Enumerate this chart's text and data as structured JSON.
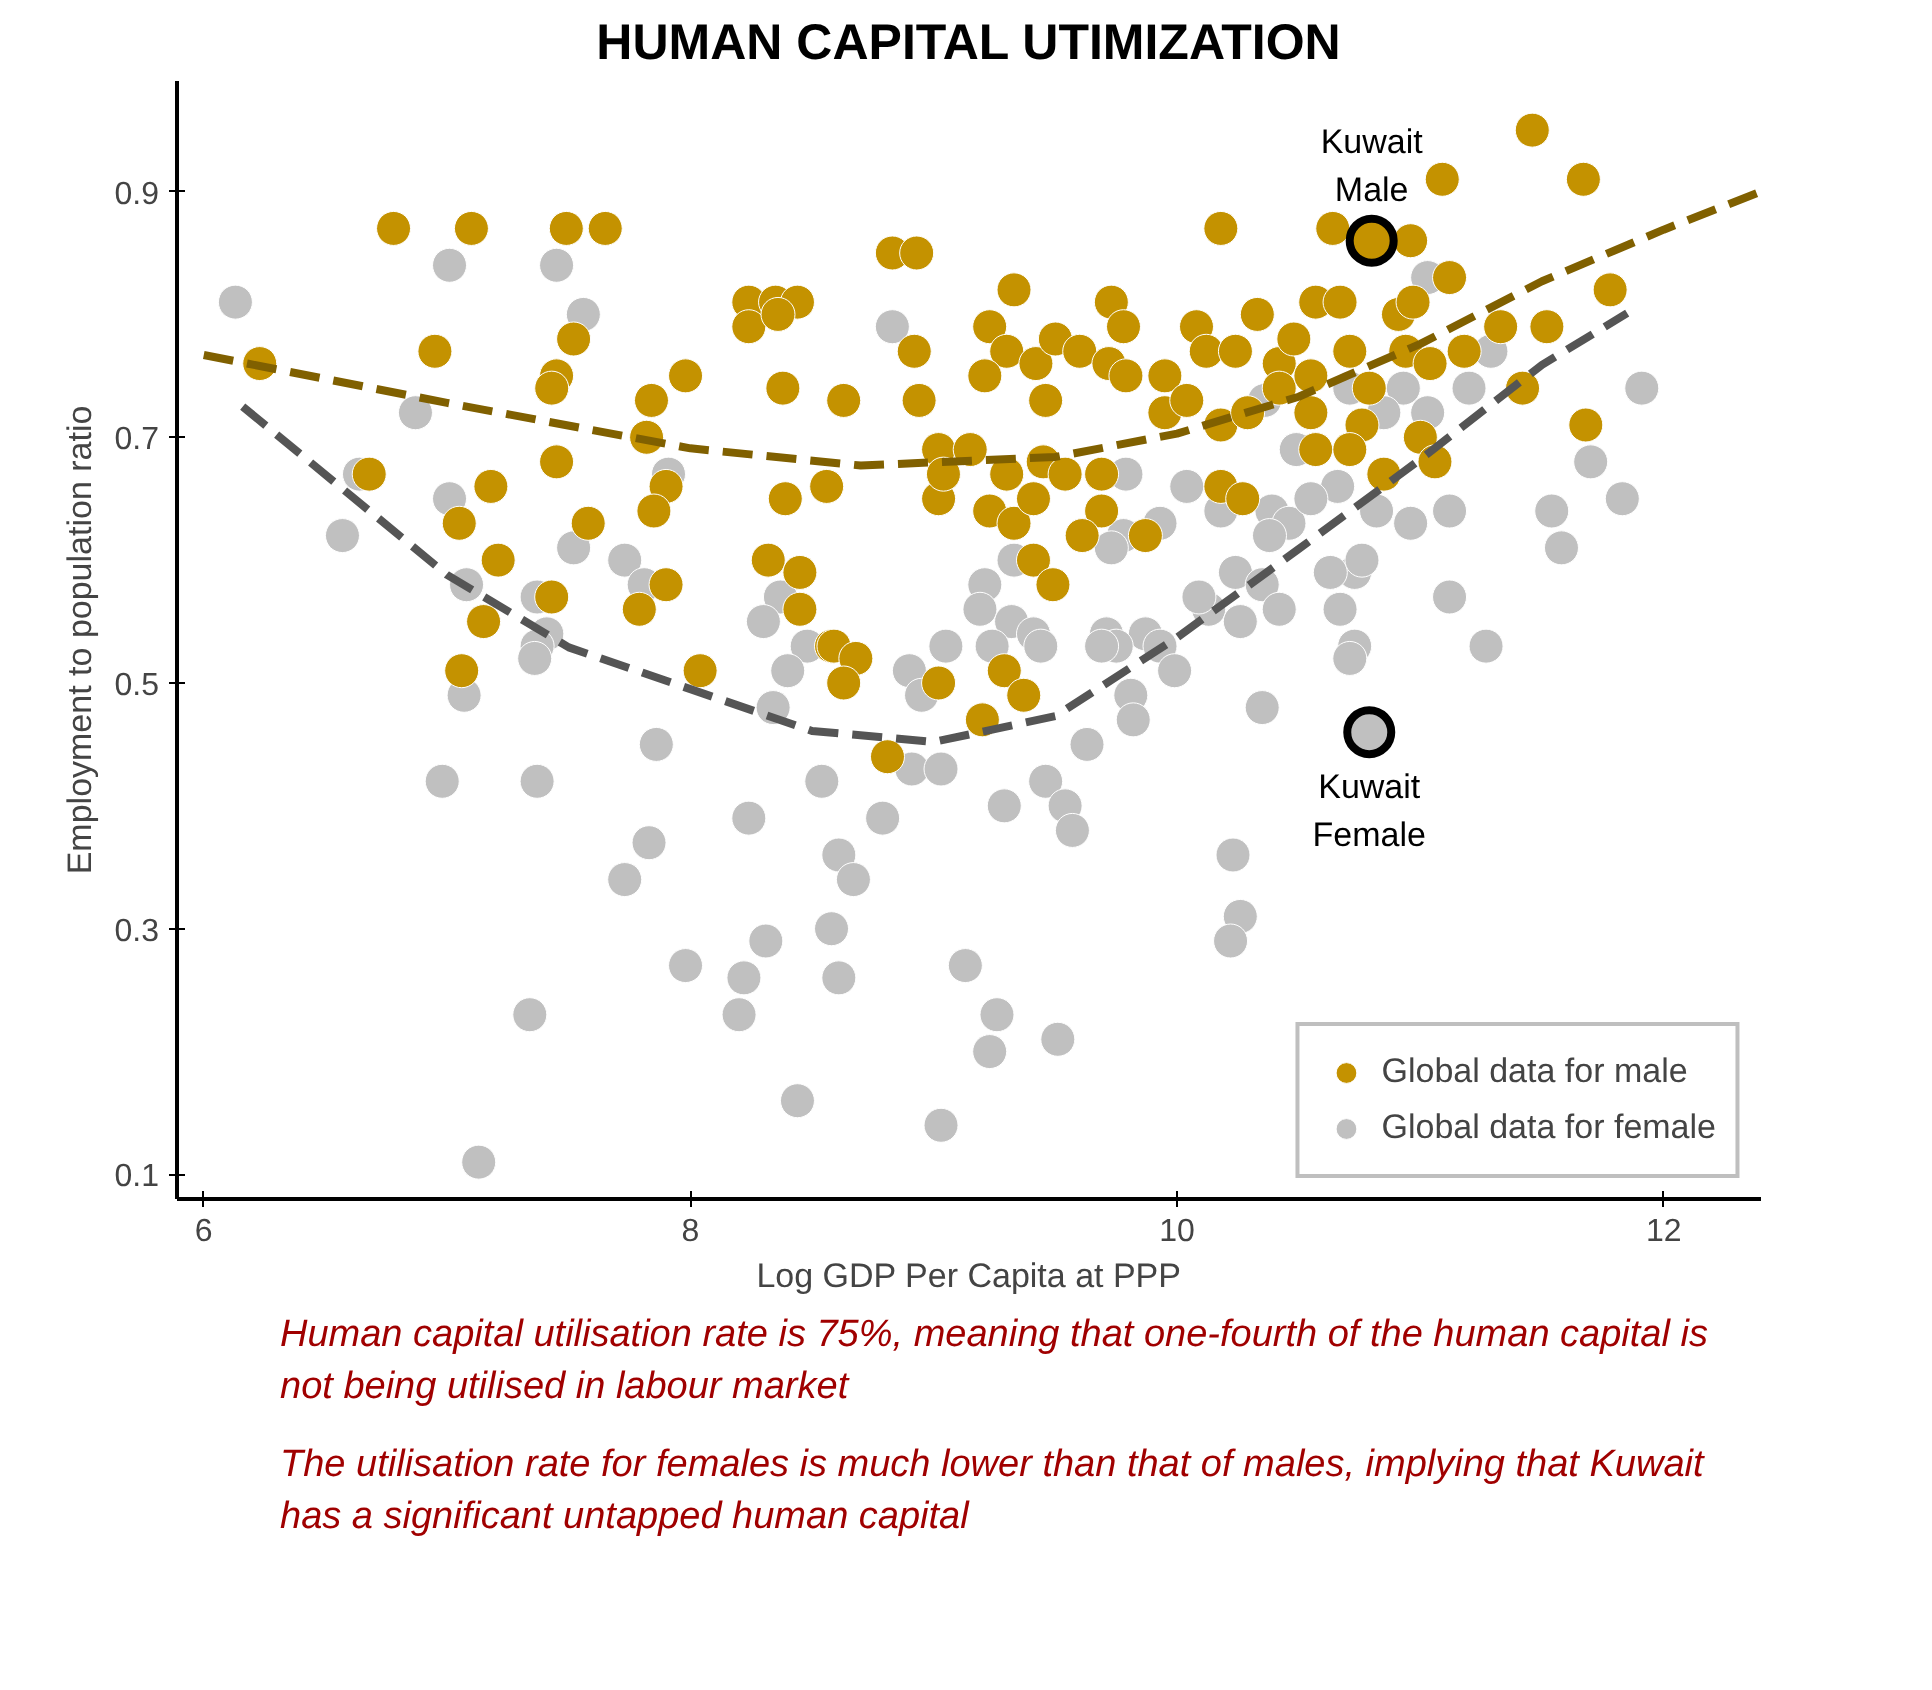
{
  "chart_data": {
    "type": "scatter",
    "title": "HUMAN CAPITAL UTIMIZATION",
    "xlabel": "Log GDP Per Capita at PPP",
    "ylabel": "Employment to population ratio",
    "xlim": [
      5.89,
      12.4
    ],
    "ylim": [
      0.08,
      0.99
    ],
    "xticks": [
      6,
      8,
      10,
      12
    ],
    "yticks": [
      0.1,
      0.3,
      0.5,
      0.7,
      0.9
    ],
    "grid": false,
    "legend": "bottom right",
    "series": [
      {
        "name": "Global data for female",
        "marker": "circle",
        "color": "#c0c0c0",
        "x": [
          6.13,
          7.01,
          7.45,
          7.56,
          6.87,
          8.83,
          6.64,
          7.01,
          6.57,
          7.52,
          7.73,
          7.81,
          7.91,
          7.08,
          7.37,
          7.41,
          7.37,
          8.37,
          8.3,
          8.48,
          7.07,
          7.36,
          6.98,
          7.37,
          7.86,
          7.83,
          7.73,
          8.24,
          8.34,
          8.4,
          8.54,
          8.79,
          8.61,
          8.67,
          8.58,
          8.31,
          7.98,
          8.22,
          8.2,
          8.61,
          7.34,
          8.44,
          7.13,
          8.9,
          8.95,
          8.91,
          9.03,
          9.03,
          11.91,
          11.03,
          11.29,
          11.2,
          11.7,
          11.54,
          11.83,
          11.58,
          11.12,
          11.12,
          11.27,
          10.96,
          10.82,
          10.73,
          10.63,
          10.93,
          10.85,
          11.03,
          10.71,
          10.49,
          10.66,
          10.36,
          10.39,
          10.46,
          10.18,
          10.38,
          10.24,
          10.35,
          10.13,
          10.42,
          10.09,
          10.26,
          9.93,
          9.78,
          9.73,
          10.04,
          10.55,
          10.67,
          10.76,
          9.33,
          9.21,
          9.19,
          9.32,
          9.41,
          9.71,
          9.87,
          9.75,
          9.93,
          10.73,
          9.05,
          9.24,
          9.79,
          10.71,
          10.35,
          9.99,
          9.81,
          9.82,
          9.63,
          9.46,
          9.54,
          9.57,
          9.29,
          10.23,
          10.26,
          10.22,
          9.13,
          9.26,
          9.23,
          9.51,
          9.44,
          9.69
        ],
        "values": [
          0.81,
          0.84,
          0.84,
          0.8,
          0.72,
          0.79,
          0.67,
          0.65,
          0.62,
          0.61,
          0.6,
          0.58,
          0.67,
          0.58,
          0.57,
          0.54,
          0.53,
          0.57,
          0.55,
          0.53,
          0.49,
          0.52,
          0.42,
          0.42,
          0.45,
          0.37,
          0.34,
          0.39,
          0.48,
          0.51,
          0.42,
          0.39,
          0.36,
          0.34,
          0.3,
          0.29,
          0.27,
          0.26,
          0.23,
          0.26,
          0.23,
          0.16,
          0.11,
          0.51,
          0.49,
          0.43,
          0.43,
          0.14,
          0.74,
          0.83,
          0.77,
          0.74,
          0.68,
          0.64,
          0.65,
          0.61,
          0.64,
          0.57,
          0.53,
          0.63,
          0.64,
          0.59,
          0.59,
          0.74,
          0.72,
          0.72,
          0.74,
          0.69,
          0.66,
          0.73,
          0.64,
          0.63,
          0.64,
          0.62,
          0.59,
          0.58,
          0.56,
          0.56,
          0.57,
          0.55,
          0.63,
          0.62,
          0.61,
          0.66,
          0.65,
          0.56,
          0.6,
          0.6,
          0.58,
          0.56,
          0.55,
          0.54,
          0.54,
          0.54,
          0.53,
          0.53,
          0.53,
          0.53,
          0.53,
          0.67,
          0.52,
          0.48,
          0.51,
          0.49,
          0.47,
          0.45,
          0.42,
          0.4,
          0.38,
          0.4,
          0.36,
          0.31,
          0.29,
          0.27,
          0.23,
          0.2,
          0.21,
          0.53,
          0.53
        ]
      },
      {
        "name": "Global data for male",
        "marker": "circle",
        "color": "#c49200",
        "x": [
          6.78,
          7.1,
          7.49,
          7.65,
          6.23,
          6.95,
          7.52,
          7.45,
          7.43,
          7.98,
          7.84,
          7.82,
          7.45,
          6.68,
          7.18,
          7.05,
          7.21,
          7.15,
          7.43,
          7.58,
          7.9,
          7.85,
          7.9,
          7.79,
          8.24,
          8.35,
          8.44,
          8.24,
          8.36,
          8.38,
          8.63,
          8.39,
          8.56,
          8.32,
          8.45,
          8.45,
          8.58,
          8.83,
          8.93,
          8.92,
          8.94,
          9.02,
          9.02,
          7.06,
          8.04,
          8.59,
          8.68,
          8.63,
          8.81,
          9.02,
          10.18,
          11.09,
          11.46,
          11.67,
          10.64,
          10.96,
          11.12,
          11.78,
          9.33,
          9.73,
          9.23,
          9.3,
          9.42,
          9.5,
          9.6,
          9.72,
          9.78,
          9.79,
          9.21,
          9.46,
          9.95,
          9.95,
          10.08,
          10.12,
          10.24,
          10.33,
          10.04,
          10.18,
          10.29,
          10.42,
          10.48,
          10.42,
          10.55,
          10.57,
          10.67,
          10.55,
          10.71,
          10.79,
          10.76,
          10.57,
          10.71,
          10.85,
          10.91,
          10.97,
          10.94,
          11.04,
          11.0,
          11.06,
          11.18,
          11.33,
          11.52,
          11.42,
          11.68,
          9.04,
          9.15,
          9.3,
          9.23,
          9.33,
          9.41,
          9.45,
          9.54,
          9.69,
          9.69,
          9.61,
          9.87,
          10.18,
          10.27,
          9.41,
          9.49,
          9.29,
          9.37,
          9.2
        ],
        "values": [
          0.87,
          0.87,
          0.87,
          0.87,
          0.76,
          0.77,
          0.78,
          0.75,
          0.74,
          0.75,
          0.73,
          0.7,
          0.68,
          0.67,
          0.66,
          0.63,
          0.6,
          0.55,
          0.57,
          0.63,
          0.66,
          0.64,
          0.58,
          0.56,
          0.81,
          0.81,
          0.81,
          0.79,
          0.8,
          0.74,
          0.73,
          0.65,
          0.66,
          0.6,
          0.59,
          0.56,
          0.53,
          0.85,
          0.85,
          0.77,
          0.73,
          0.69,
          0.65,
          0.51,
          0.51,
          0.53,
          0.52,
          0.5,
          0.44,
          0.5,
          0.87,
          0.91,
          0.95,
          0.91,
          0.87,
          0.86,
          0.83,
          0.82,
          0.82,
          0.81,
          0.79,
          0.77,
          0.76,
          0.78,
          0.77,
          0.76,
          0.79,
          0.75,
          0.75,
          0.73,
          0.75,
          0.72,
          0.79,
          0.77,
          0.77,
          0.8,
          0.73,
          0.71,
          0.72,
          0.76,
          0.78,
          0.74,
          0.72,
          0.81,
          0.81,
          0.75,
          0.77,
          0.74,
          0.71,
          0.69,
          0.69,
          0.67,
          0.8,
          0.81,
          0.77,
          0.76,
          0.7,
          0.68,
          0.77,
          0.79,
          0.79,
          0.74,
          0.71,
          0.67,
          0.69,
          0.67,
          0.64,
          0.63,
          0.65,
          0.68,
          0.67,
          0.67,
          0.64,
          0.62,
          0.62,
          0.66,
          0.65,
          0.6,
          0.58,
          0.51,
          0.49,
          0.47
        ]
      },
      {
        "type": "line",
        "marker": "none",
        "color": "#806000",
        "line_style": "dashed",
        "x": [
          6,
          7,
          8,
          8.7,
          9.5,
          10,
          10.5,
          11,
          11.5,
          12,
          12.4
        ],
        "values": [
          0.767,
          0.728,
          0.691,
          0.677,
          0.684,
          0.703,
          0.733,
          0.776,
          0.827,
          0.869,
          0.9
        ]
      },
      {
        "type": "line",
        "marker": "none",
        "color": "#555555",
        "line_style": "dashed",
        "x": [
          6.16,
          7,
          7.5,
          8,
          8.5,
          9,
          9.5,
          10,
          10.5,
          11,
          11.5,
          11.85
        ],
        "values": [
          0.725,
          0.588,
          0.529,
          0.495,
          0.461,
          0.452,
          0.473,
          0.537,
          0.609,
          0.682,
          0.759,
          0.801
        ]
      },
      {
        "marker": "circle",
        "color": "#c49200",
        "x": [
          10.8
        ],
        "values": [
          0.86
        ]
      },
      {
        "marker": "circle",
        "color": "#c0c0c0",
        "x": [
          10.79
        ],
        "values": [
          0.46
        ]
      }
    ],
    "annotations": [
      {
        "text": "Kuwait\nMale",
        "x": 10.8,
        "y": 0.86
      },
      {
        "text": "Kuwait\nFemale",
        "x": 10.79,
        "y": 0.46
      },
      "Human capital utilisation rate is 75%, meaning that one-fourth of the human capital is not being utilised in labour market",
      "The utilisation rate for females is much lower than that of males, implying that Kuwait has a significant untapped human capital"
    ]
  }
}
